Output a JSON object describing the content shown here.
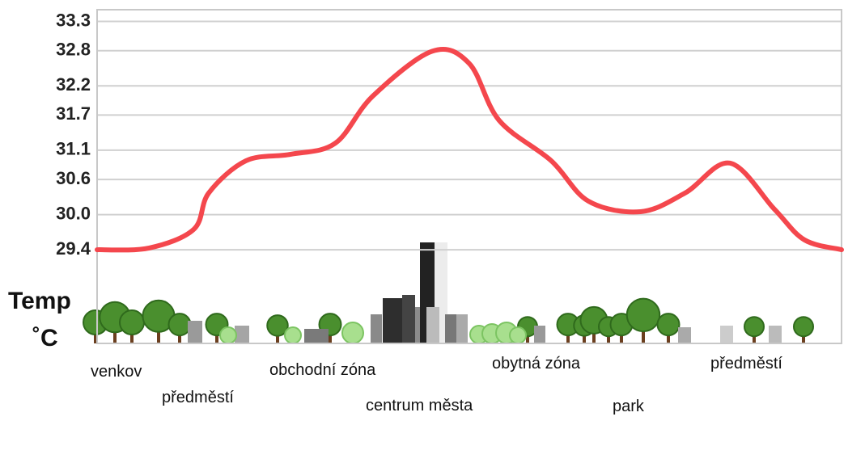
{
  "chart_data": {
    "type": "line",
    "ylabel": [
      "Temp",
      "˚C"
    ],
    "ylim": [
      27.8,
      33.5
    ],
    "yticks": [
      29.4,
      {
        "value": 30,
        "label": "30.0"
      },
      30.6,
      31.1,
      31.7,
      32.2,
      32.8,
      33.3
    ],
    "xlim": [
      0,
      100
    ],
    "grid": true,
    "series": [
      {
        "color": "#f4474d",
        "x": [
          0,
          7,
          13,
          15,
          20,
          26,
          32,
          37,
          45,
          50,
          54,
          61,
          66,
          73,
          79,
          85,
          91,
          95,
          100
        ],
        "values": [
          29.4,
          29.43,
          29.75,
          30.37,
          30.92,
          31.03,
          31.22,
          32.02,
          32.79,
          32.58,
          31.61,
          30.92,
          30.23,
          30.05,
          30.37,
          30.88,
          30.09,
          29.57,
          29.4
        ]
      }
    ],
    "annotations": [
      "venkov",
      "předměstí",
      "obchodní zóna",
      "centrum města",
      "obytná zóna",
      "park",
      "předměstí"
    ]
  }
}
